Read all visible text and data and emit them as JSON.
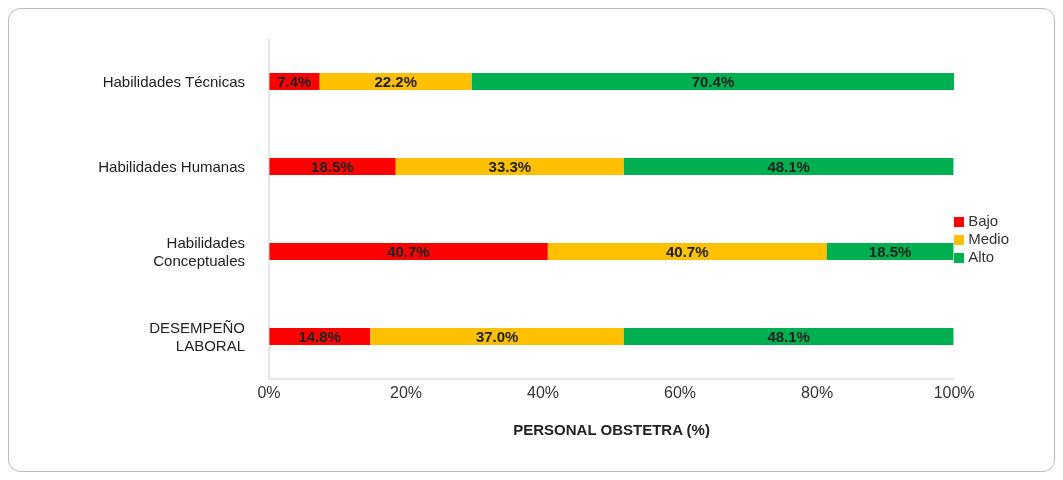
{
  "chart_data": {
    "type": "bar",
    "orientation": "horizontal",
    "stacked": true,
    "xlabel": "PERSONAL OBSTETRA (%)",
    "categories": [
      "Habilidades Técnicas",
      "Habilidades Humanas",
      "Habilidades Conceptuales",
      "DESEMPEÑO LABORAL"
    ],
    "series": [
      {
        "name": "Bajo",
        "color": "#ff0000",
        "values": [
          7.4,
          18.5,
          40.7,
          14.8
        ],
        "value_labels": [
          "7.4%",
          "18.5%",
          "40.7%",
          "14.8%"
        ]
      },
      {
        "name": "Medio",
        "color": "#ffc000",
        "values": [
          22.2,
          33.3,
          40.7,
          37.0
        ],
        "value_labels": [
          "22.2%",
          "33.3%",
          "40.7%",
          "37.0%"
        ]
      },
      {
        "name": "Alto",
        "color": "#00b050",
        "values": [
          70.4,
          48.1,
          18.5,
          48.1
        ],
        "value_labels": [
          "70.4%",
          "48.1%",
          "18.5%",
          "48.1%"
        ]
      }
    ],
    "xlim": [
      0,
      100
    ],
    "xticks": [
      {
        "value": 0,
        "label": "0%"
      },
      {
        "value": 20,
        "label": "20%"
      },
      {
        "value": 40,
        "label": "40%"
      },
      {
        "value": 60,
        "label": "60%"
      },
      {
        "value": 80,
        "label": "80%"
      },
      {
        "value": 100,
        "label": "100%"
      }
    ],
    "grid": false,
    "legend": "right"
  }
}
